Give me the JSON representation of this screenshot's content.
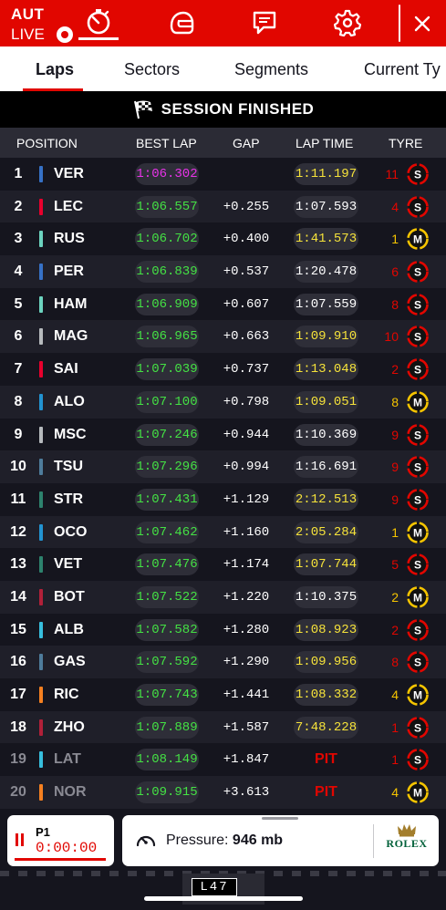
{
  "header": {
    "country_code": "AUT",
    "live_label": "LIVE",
    "close_icon": "close-icon"
  },
  "tabs": [
    {
      "label": "Laps",
      "active": true
    },
    {
      "label": "Sectors",
      "active": false
    },
    {
      "label": "Segments",
      "active": false
    },
    {
      "label": "Current Ty",
      "active": false
    }
  ],
  "session": {
    "status": "SESSION FINISHED"
  },
  "columns": {
    "position": "POSITION",
    "best_lap": "BEST LAP",
    "gap": "GAP",
    "lap_time": "LAP TIME",
    "tyre": "TYRE"
  },
  "colors": {
    "accent_red": "#e10600",
    "purple": "#e833e8",
    "green": "#44e144",
    "yellow": "#f5e23a",
    "soft_tyre": "#e10600",
    "medium_tyre": "#f5c400"
  },
  "drivers": [
    {
      "pos": "1",
      "code": "VER",
      "team_color": "#3671c6",
      "best": "1:06.302",
      "best_color": "purple",
      "gap": "",
      "lap": "1:11.197",
      "lap_color": "yellow",
      "laps": "11",
      "tyre": "S"
    },
    {
      "pos": "2",
      "code": "LEC",
      "team_color": "#e8002d",
      "best": "1:06.557",
      "best_color": "green",
      "gap": "+0.255",
      "lap": "1:07.593",
      "lap_color": "white",
      "laps": "4",
      "tyre": "S"
    },
    {
      "pos": "3",
      "code": "RUS",
      "team_color": "#6cd3bf",
      "best": "1:06.702",
      "best_color": "green",
      "gap": "+0.400",
      "lap": "1:41.573",
      "lap_color": "yellow",
      "laps": "1",
      "tyre": "M"
    },
    {
      "pos": "4",
      "code": "PER",
      "team_color": "#3671c6",
      "best": "1:06.839",
      "best_color": "green",
      "gap": "+0.537",
      "lap": "1:20.478",
      "lap_color": "white",
      "laps": "6",
      "tyre": "S"
    },
    {
      "pos": "5",
      "code": "HAM",
      "team_color": "#6cd3bf",
      "best": "1:06.909",
      "best_color": "green",
      "gap": "+0.607",
      "lap": "1:07.559",
      "lap_color": "white",
      "laps": "8",
      "tyre": "S"
    },
    {
      "pos": "6",
      "code": "MAG",
      "team_color": "#b6babd",
      "best": "1:06.965",
      "best_color": "green",
      "gap": "+0.663",
      "lap": "1:09.910",
      "lap_color": "yellow",
      "laps": "10",
      "tyre": "S"
    },
    {
      "pos": "7",
      "code": "SAI",
      "team_color": "#e8002d",
      "best": "1:07.039",
      "best_color": "green",
      "gap": "+0.737",
      "lap": "1:13.048",
      "lap_color": "yellow",
      "laps": "2",
      "tyre": "S"
    },
    {
      "pos": "8",
      "code": "ALO",
      "team_color": "#2293d1",
      "best": "1:07.100",
      "best_color": "green",
      "gap": "+0.798",
      "lap": "1:09.051",
      "lap_color": "yellow",
      "laps": "8",
      "tyre": "M"
    },
    {
      "pos": "9",
      "code": "MSC",
      "team_color": "#b6babd",
      "best": "1:07.246",
      "best_color": "green",
      "gap": "+0.944",
      "lap": "1:10.369",
      "lap_color": "white",
      "laps": "9",
      "tyre": "S"
    },
    {
      "pos": "10",
      "code": "TSU",
      "team_color": "#4e7c9b",
      "best": "1:07.296",
      "best_color": "green",
      "gap": "+0.994",
      "lap": "1:16.691",
      "lap_color": "white",
      "laps": "9",
      "tyre": "S"
    },
    {
      "pos": "11",
      "code": "STR",
      "team_color": "#2d826d",
      "best": "1:07.431",
      "best_color": "green",
      "gap": "+1.129",
      "lap": "2:12.513",
      "lap_color": "yellow",
      "laps": "9",
      "tyre": "S"
    },
    {
      "pos": "12",
      "code": "OCO",
      "team_color": "#2293d1",
      "best": "1:07.462",
      "best_color": "green",
      "gap": "+1.160",
      "lap": "2:05.284",
      "lap_color": "yellow",
      "laps": "1",
      "tyre": "M"
    },
    {
      "pos": "13",
      "code": "VET",
      "team_color": "#2d826d",
      "best": "1:07.476",
      "best_color": "green",
      "gap": "+1.174",
      "lap": "1:07.744",
      "lap_color": "yellow",
      "laps": "5",
      "tyre": "S"
    },
    {
      "pos": "14",
      "code": "BOT",
      "team_color": "#b12039",
      "best": "1:07.522",
      "best_color": "green",
      "gap": "+1.220",
      "lap": "1:10.375",
      "lap_color": "white",
      "laps": "2",
      "tyre": "M"
    },
    {
      "pos": "15",
      "code": "ALB",
      "team_color": "#37bedd",
      "best": "1:07.582",
      "best_color": "green",
      "gap": "+1.280",
      "lap": "1:08.923",
      "lap_color": "yellow",
      "laps": "2",
      "tyre": "S"
    },
    {
      "pos": "16",
      "code": "GAS",
      "team_color": "#4e7c9b",
      "best": "1:07.592",
      "best_color": "green",
      "gap": "+1.290",
      "lap": "1:09.956",
      "lap_color": "yellow",
      "laps": "8",
      "tyre": "S"
    },
    {
      "pos": "17",
      "code": "RIC",
      "team_color": "#f58020",
      "best": "1:07.743",
      "best_color": "green",
      "gap": "+1.441",
      "lap": "1:08.332",
      "lap_color": "yellow",
      "laps": "4",
      "tyre": "M"
    },
    {
      "pos": "18",
      "code": "ZHO",
      "team_color": "#b12039",
      "best": "1:07.889",
      "best_color": "green",
      "gap": "+1.587",
      "lap": "7:48.228",
      "lap_color": "yellow",
      "laps": "1",
      "tyre": "S"
    },
    {
      "pos": "19",
      "code": "LAT",
      "team_color": "#37bedd",
      "best": "1:08.149",
      "best_color": "green",
      "gap": "+1.847",
      "lap": "PIT",
      "lap_color": "pit",
      "laps": "1",
      "tyre": "S",
      "dim": true
    },
    {
      "pos": "20",
      "code": "NOR",
      "team_color": "#f58020",
      "best": "1:09.915",
      "best_color": "green",
      "gap": "+3.613",
      "lap": "PIT",
      "lap_color": "pit",
      "laps": "4",
      "tyre": "M",
      "dim": true
    }
  ],
  "bottom": {
    "leader_label": "P1",
    "leader_time": "0:00:00",
    "pressure_label": "Pressure:",
    "pressure_value": "946 mb",
    "sponsor": "ROLEX",
    "lap_board": "L47"
  }
}
